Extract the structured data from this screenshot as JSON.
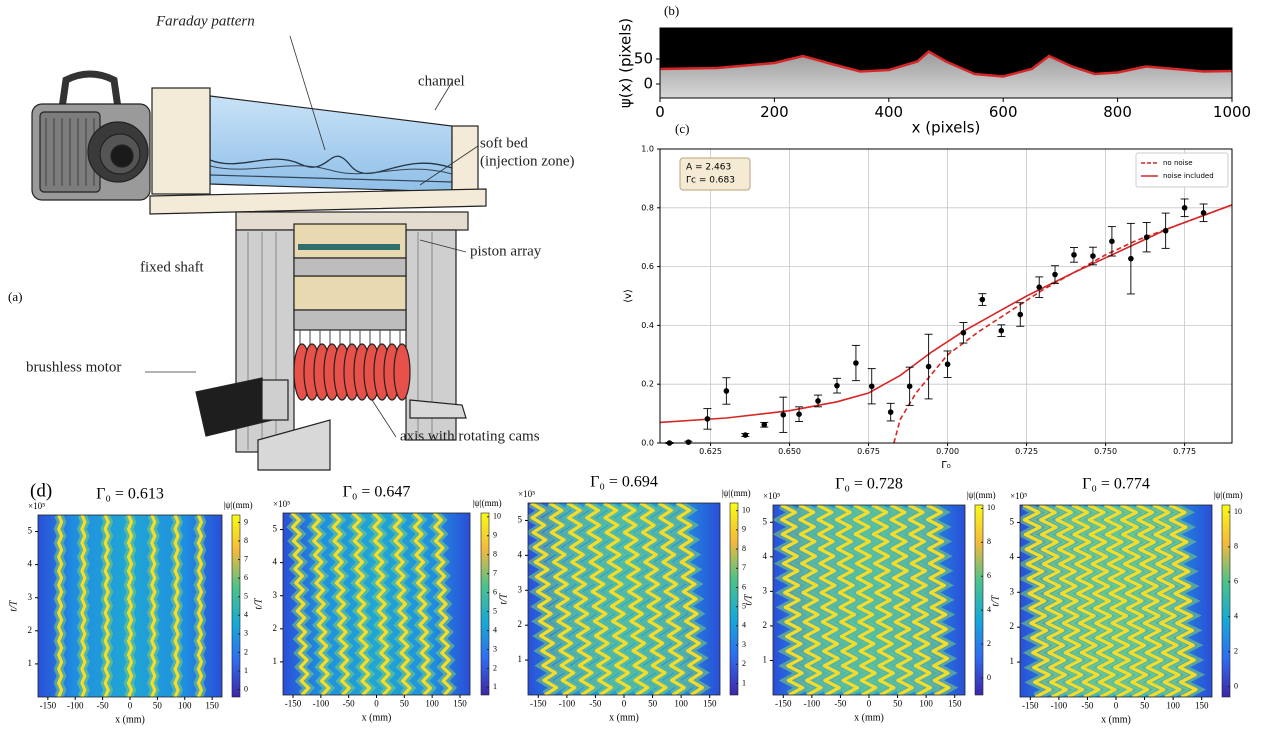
{
  "panel_labels": [
    "(a)",
    "(b)",
    "(c)",
    "(d)"
  ],
  "diagram": {
    "labels": {
      "faraday_pattern": "Faraday pattern",
      "channel": "channel",
      "soft_bed": "soft bed",
      "injection_zone": "(injection zone)",
      "piston_array": "piston array",
      "fixed_shaft": "fixed shaft",
      "brushless_motor": "brushless motor",
      "axis_cams": "axis with rotating cams"
    }
  },
  "chart_data": [
    {
      "type": "line",
      "x_label": "x (pixels)",
      "y_label": "ψ(x) (pixels)",
      "x": [
        0,
        50,
        100,
        150,
        200,
        250,
        300,
        350,
        400,
        450,
        470,
        500,
        550,
        600,
        650,
        680,
        720,
        760,
        800,
        850,
        900,
        950,
        1000
      ],
      "values": [
        30,
        31,
        32,
        37,
        42,
        56,
        40,
        25,
        28,
        45,
        65,
        45,
        20,
        15,
        30,
        56,
        35,
        20,
        23,
        35,
        30,
        25,
        26
      ],
      "color": "#d62728",
      "background": "#000000",
      "xlim": [
        0,
        1000
      ],
      "xticks": [
        0,
        200,
        400,
        600,
        800,
        1000
      ],
      "ylim": [
        -28,
        112
      ],
      "yticks": [
        0,
        50
      ]
    },
    {
      "type": "scatter",
      "x_label": "Γ₀",
      "y_label": "⟨v⟩",
      "annotations": [
        "A = 2.463",
        "Γc = 0.683"
      ],
      "x": [
        0.612,
        0.618,
        0.624,
        0.63,
        0.636,
        0.642,
        0.648,
        0.653,
        0.659,
        0.665,
        0.671,
        0.676,
        0.682,
        0.688,
        0.694,
        0.7,
        0.705,
        0.711,
        0.717,
        0.723,
        0.729,
        0.734,
        0.74,
        0.746,
        0.752,
        0.758,
        0.763,
        0.769,
        0.775,
        0.781
      ],
      "values": [
        0.0,
        0.003,
        0.082,
        0.177,
        0.027,
        0.062,
        0.096,
        0.098,
        0.143,
        0.195,
        0.272,
        0.193,
        0.105,
        0.193,
        0.26,
        0.268,
        0.375,
        0.488,
        0.382,
        0.437,
        0.53,
        0.573,
        0.64,
        0.636,
        0.686,
        0.627,
        0.7,
        0.722,
        0.8,
        0.783
      ],
      "errors": [
        0.002,
        0.003,
        0.035,
        0.045,
        0.005,
        0.008,
        0.06,
        0.025,
        0.02,
        0.025,
        0.06,
        0.06,
        0.03,
        0.065,
        0.11,
        0.045,
        0.035,
        0.02,
        0.02,
        0.04,
        0.035,
        0.03,
        0.025,
        0.03,
        0.05,
        0.12,
        0.05,
        0.06,
        0.03,
        0.03
      ],
      "color": "#000000",
      "series": [
        {
          "name": "no noise",
          "color": "#d62728",
          "dashed": true,
          "x": [
            0.683,
            0.685,
            0.69,
            0.7,
            0.71,
            0.72,
            0.73,
            0.74,
            0.75,
            0.76,
            0.77,
            0.78,
            0.79
          ],
          "values": [
            0.0,
            0.08,
            0.17,
            0.3,
            0.38,
            0.45,
            0.52,
            0.58,
            0.64,
            0.69,
            0.73,
            0.77,
            0.81
          ]
        },
        {
          "name": "noise included",
          "color": "#d62728",
          "dashed": false,
          "x": [
            0.609,
            0.63,
            0.65,
            0.665,
            0.675,
            0.685,
            0.695,
            0.705,
            0.715,
            0.725,
            0.74,
            0.75,
            0.76,
            0.77,
            0.78,
            0.79
          ],
          "values": [
            0.07,
            0.085,
            0.11,
            0.14,
            0.17,
            0.23,
            0.31,
            0.38,
            0.44,
            0.5,
            0.58,
            0.63,
            0.68,
            0.73,
            0.77,
            0.81
          ]
        }
      ],
      "xlim": [
        0.609,
        0.79
      ],
      "xticks": [
        0.625,
        {
          "value": 0.65,
          "label": "0.650"
        },
        0.675,
        {
          "value": 0.7,
          "label": "0.700"
        },
        0.725,
        {
          "value": 0.75,
          "label": "0.750"
        },
        0.775
      ],
      "ylim": [
        0,
        1.0
      ],
      "yticks": [
        {
          "value": 0,
          "label": "0.0"
        },
        0.2,
        0.4,
        0.6,
        0.8,
        {
          "value": 1,
          "label": "1.0"
        }
      ],
      "grid": true,
      "legend": "upper right"
    },
    {
      "type": "heatmap",
      "title": "Γ₀ = 0.613",
      "x_label": "x (mm)",
      "y_label": "t/T",
      "y_multiplier": "×10⁵",
      "colorbar_label": "|ψ|(mm)",
      "xlim": [
        -168,
        168
      ],
      "xticks": [
        -150,
        -100,
        -50,
        0,
        50,
        100,
        150
      ],
      "ylim": [
        0,
        5.5
      ],
      "yticks": [
        1,
        2,
        3,
        4,
        5
      ],
      "clim": [
        -0.4,
        9.4
      ],
      "cticks": [
        0,
        1,
        2,
        3,
        4,
        5,
        6,
        7,
        8,
        9
      ]
    },
    {
      "type": "heatmap",
      "title": "Γ₀ = 0.647",
      "x_label": "x (mm)",
      "y_label": "t/T",
      "y_multiplier": "×10⁵",
      "colorbar_label": "|ψ|(mm)",
      "xlim": [
        -168,
        168
      ],
      "xticks": [
        -150,
        -100,
        -50,
        0,
        50,
        100,
        150
      ],
      "ylim": [
        0,
        5.5
      ],
      "yticks": [
        1,
        2,
        3,
        4,
        5
      ],
      "clim": [
        0.6,
        10.2
      ],
      "cticks": [
        1,
        2,
        3,
        4,
        5,
        6,
        7,
        8,
        9,
        10
      ]
    },
    {
      "type": "heatmap",
      "title": "Γ₀ = 0.694",
      "x_label": "x (mm)",
      "y_label": "t/T",
      "y_multiplier": "×10⁵",
      "colorbar_label": "|ψ|(mm)",
      "xlim": [
        -168,
        168
      ],
      "xticks": [
        -150,
        -100,
        -50,
        0,
        50,
        100,
        150
      ],
      "ylim": [
        0,
        5.5
      ],
      "yticks": [
        1,
        2,
        3,
        4,
        5
      ],
      "clim": [
        0.4,
        10.4
      ],
      "cticks": [
        1,
        2,
        3,
        4,
        5,
        6,
        7,
        8,
        9,
        10
      ]
    },
    {
      "type": "heatmap",
      "title": "Γ₀ = 0.728",
      "x_label": "x (mm)",
      "y_label": "t/T",
      "y_multiplier": "×10⁵",
      "colorbar_label": "|ψ|(mm)",
      "xlim": [
        -168,
        168
      ],
      "xticks": [
        -150,
        -100,
        -50,
        0,
        50,
        100,
        150
      ],
      "ylim": [
        0,
        5.5
      ],
      "yticks": [
        1,
        2,
        3,
        4,
        5
      ],
      "clim": [
        -1,
        10.2
      ],
      "cticks": [
        0,
        2,
        4,
        6,
        8,
        10
      ]
    },
    {
      "type": "heatmap",
      "title": "Γ₀ = 0.774",
      "x_label": "x (mm)",
      "y_label": "t/T",
      "y_multiplier": "×10⁵",
      "colorbar_label": "|ψ|(mm)",
      "xlim": [
        -168,
        168
      ],
      "xticks": [
        -150,
        -100,
        -50,
        0,
        50,
        100,
        150
      ],
      "ylim": [
        0,
        5.5
      ],
      "yticks": [
        1,
        2,
        3,
        4,
        5
      ],
      "clim": [
        -0.6,
        10.4
      ],
      "cticks": [
        0,
        2,
        4,
        6,
        8,
        10
      ]
    }
  ]
}
